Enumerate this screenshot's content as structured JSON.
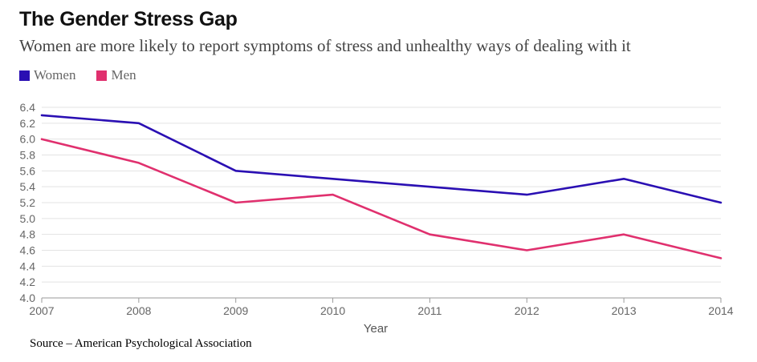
{
  "title": "The Gender Stress Gap",
  "subtitle": "Women are more likely to report symptoms of stress and unhealthy ways of dealing with it",
  "source": "Source – American Psychological Association",
  "chart_data": {
    "type": "line",
    "title": "The Gender Stress Gap",
    "xlabel": "Year",
    "ylabel": "",
    "x": [
      2007,
      2008,
      2009,
      2010,
      2011,
      2012,
      2013,
      2014
    ],
    "x_tick_labels": [
      "2007",
      "2008",
      "2009",
      "2010",
      "2011",
      "2012",
      "2013",
      "2014"
    ],
    "ylim": [
      4.0,
      6.4
    ],
    "y_ticks": [
      4.0,
      4.2,
      4.4,
      4.6,
      4.8,
      5.0,
      5.2,
      5.4,
      5.6,
      5.8,
      6.0,
      6.2,
      6.4
    ],
    "y_tick_labels": [
      "4.0",
      "4.2",
      "4.4",
      "4.6",
      "4.8",
      "5.0",
      "5.2",
      "5.4",
      "5.6",
      "5.8",
      "6.0",
      "6.2",
      "6.4"
    ],
    "grid": true,
    "legend_position": "top-left",
    "series": [
      {
        "name": "Women",
        "color": "#2a0fb3",
        "values": [
          6.3,
          6.2,
          5.6,
          5.5,
          5.4,
          5.3,
          5.5,
          5.2
        ]
      },
      {
        "name": "Men",
        "color": "#e0306e",
        "values": [
          6.0,
          5.7,
          5.2,
          5.3,
          4.8,
          4.6,
          4.8,
          4.5
        ]
      }
    ]
  }
}
